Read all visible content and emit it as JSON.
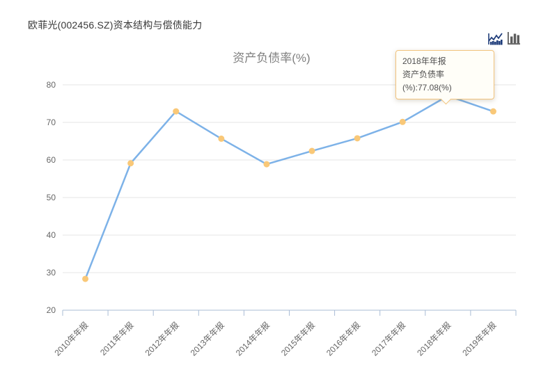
{
  "header": {
    "title": "欧菲光(002456.SZ)资本结构与偿债能力"
  },
  "toolbar": {
    "line_chart_icon": "line-chart",
    "bar_chart_icon": "bar-chart",
    "active_icon_color": "#1f3d7a",
    "inactive_icon_color": "#5e5e5e"
  },
  "chart_data": {
    "type": "line",
    "title": "资产负债率(%)",
    "categories": [
      "2010年年报",
      "2011年年报",
      "2012年年报",
      "2013年年报",
      "2014年年报",
      "2015年年报",
      "2016年年报",
      "2017年年报",
      "2018年年报",
      "2019年年报"
    ],
    "series": [
      {
        "name": "资产负债率(%)",
        "values": [
          28.34,
          59.12,
          72.95,
          65.66,
          58.87,
          62.4,
          65.77,
          70.13,
          77.08,
          72.93
        ]
      }
    ],
    "xlabel": "",
    "ylabel": "",
    "ylim": [
      20,
      80
    ],
    "yticks": [
      20,
      30,
      40,
      50,
      60,
      70,
      80
    ],
    "grid": true,
    "legend_position": "none",
    "x_label_rotation": -45,
    "highlight_index": 8
  },
  "tooltip": {
    "line1": "2018年年报",
    "line2": "资产负债率(%):77.08(%)"
  },
  "colors": {
    "line": "#7db2e8",
    "marker": "#f9c878",
    "grid": "#e4e4e4",
    "axis": "#a9bcd6",
    "tick_label": "#666666",
    "chart_title": "#7f7f7f",
    "header_title": "#383838",
    "tooltip_bg": "#fffef8",
    "tooltip_border": "#f2c37c",
    "tooltip_text": "#4f4f4f"
  }
}
